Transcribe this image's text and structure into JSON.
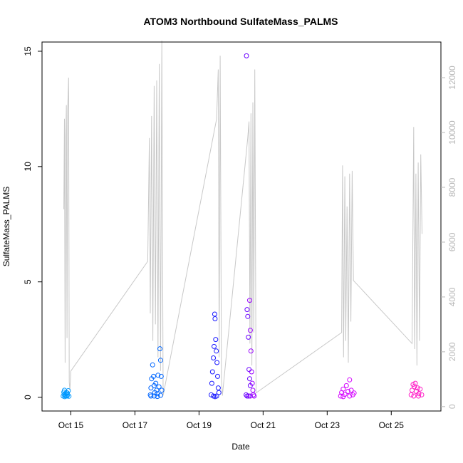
{
  "chart_data": {
    "type": "scatter",
    "title": "ATOM3 Northbound SulfateMass_PALMS",
    "xlabel": "Date",
    "ylabel": "SulfateMass_PALMS",
    "x_unit": "day of October",
    "xlim": [
      14.1,
      26.55
    ],
    "ylim": [
      -0.6,
      15.4
    ],
    "x_ticks": [
      {
        "value": 15,
        "label": "Oct 15"
      },
      {
        "value": 17,
        "label": "Oct 17"
      },
      {
        "value": 19,
        "label": "Oct 19"
      },
      {
        "value": 21,
        "label": "Oct 21"
      },
      {
        "value": 23,
        "label": "Oct 23"
      },
      {
        "value": 25,
        "label": "Oct 25"
      }
    ],
    "y_ticks": [
      0,
      5,
      10,
      15
    ],
    "y2_ticks": [
      0,
      2000,
      4000,
      6000,
      8000,
      10000,
      12000
    ],
    "y2lim": [
      -160,
      13300
    ],
    "grid": false,
    "legend": "none",
    "colors": {
      "altitude_line": "#c8c8c8",
      "right_axis": "#b8b8b8",
      "flight_palette": [
        "#0099ff",
        "#0066ff",
        "#1a1aff",
        "#6a00ff",
        "#9900ff",
        "#d400ff",
        "#ff1ac6"
      ]
    },
    "altitude_series": {
      "description": "Grey aircraft altitude trace plotted against right axis",
      "points": [
        [
          14.78,
          7200
        ],
        [
          14.8,
          10500
        ],
        [
          14.82,
          1600
        ],
        [
          14.84,
          9800
        ],
        [
          14.86,
          11000
        ],
        [
          14.88,
          2500
        ],
        [
          14.9,
          10800
        ],
        [
          14.93,
          12000
        ],
        [
          14.95,
          900
        ],
        [
          14.97,
          600
        ],
        [
          15.0,
          1300
        ],
        [
          17.4,
          5300
        ],
        [
          17.45,
          9800
        ],
        [
          17.48,
          3400
        ],
        [
          17.52,
          10600
        ],
        [
          17.56,
          2400
        ],
        [
          17.6,
          11700
        ],
        [
          17.64,
          3000
        ],
        [
          17.68,
          11900
        ],
        [
          17.72,
          1800
        ],
        [
          17.76,
          12500
        ],
        [
          17.8,
          1300
        ],
        [
          17.84,
          13350
        ],
        [
          17.88,
          400
        ],
        [
          19.55,
          10500
        ],
        [
          19.6,
          12300
        ],
        [
          19.63,
          1800
        ],
        [
          19.66,
          12800
        ],
        [
          19.7,
          1100
        ],
        [
          19.73,
          400
        ],
        [
          20.52,
          9800
        ],
        [
          20.56,
          10400
        ],
        [
          20.59,
          2300
        ],
        [
          20.62,
          10700
        ],
        [
          20.65,
          1500
        ],
        [
          20.68,
          11100
        ],
        [
          20.71,
          2700
        ],
        [
          20.74,
          12300
        ],
        [
          20.78,
          500
        ],
        [
          23.45,
          2700
        ],
        [
          23.48,
          8800
        ],
        [
          23.51,
          1800
        ],
        [
          23.55,
          8400
        ],
        [
          23.58,
          2400
        ],
        [
          23.62,
          7300
        ],
        [
          23.66,
          1600
        ],
        [
          23.7,
          8500
        ],
        [
          23.74,
          3100
        ],
        [
          23.78,
          8600
        ],
        [
          23.82,
          4600
        ],
        [
          25.65,
          2300
        ],
        [
          25.7,
          10200
        ],
        [
          25.73,
          2100
        ],
        [
          25.77,
          8500
        ],
        [
          25.8,
          1500
        ],
        [
          25.84,
          8900
        ],
        [
          25.88,
          2400
        ],
        [
          25.92,
          9200
        ],
        [
          25.96,
          6300
        ]
      ]
    },
    "flights": [
      {
        "color": "#0099ff",
        "x_range": [
          14.75,
          14.95
        ],
        "points": [
          [
            14.76,
            0.05
          ],
          [
            14.79,
            0.12
          ],
          [
            14.8,
            0.3
          ],
          [
            14.82,
            0.08
          ],
          [
            14.84,
            0.15
          ],
          [
            14.86,
            0.2
          ],
          [
            14.88,
            0.05
          ],
          [
            14.9,
            0.1
          ],
          [
            14.92,
            0.28
          ],
          [
            14.94,
            0.04
          ],
          [
            14.81,
            0.02
          ],
          [
            14.85,
            0.06
          ],
          [
            14.89,
            0.18
          ],
          [
            14.78,
            0.22
          ]
        ]
      },
      {
        "color": "#0066ff",
        "x_range": [
          17.45,
          17.85
        ],
        "points": [
          [
            17.48,
            0.1
          ],
          [
            17.5,
            0.4
          ],
          [
            17.52,
            0.8
          ],
          [
            17.55,
            1.4
          ],
          [
            17.58,
            0.9
          ],
          [
            17.6,
            0.5
          ],
          [
            17.62,
            0.2
          ],
          [
            17.65,
            0.6
          ],
          [
            17.68,
            0.3
          ],
          [
            17.7,
            0.15
          ],
          [
            17.72,
            0.95
          ],
          [
            17.75,
            0.45
          ],
          [
            17.78,
            2.1
          ],
          [
            17.8,
            1.6
          ],
          [
            17.82,
            0.9
          ],
          [
            17.84,
            0.3
          ],
          [
            17.5,
            0.05
          ],
          [
            17.6,
            0.05
          ],
          [
            17.7,
            0.03
          ],
          [
            17.8,
            0.08
          ]
        ]
      },
      {
        "color": "#1a1aff",
        "x_range": [
          19.35,
          19.75
        ],
        "points": [
          [
            19.38,
            0.1
          ],
          [
            19.4,
            0.6
          ],
          [
            19.42,
            1.1
          ],
          [
            19.45,
            1.7
          ],
          [
            19.47,
            2.2
          ],
          [
            19.49,
            3.6
          ],
          [
            19.5,
            3.4
          ],
          [
            19.52,
            2.5
          ],
          [
            19.54,
            2.0
          ],
          [
            19.56,
            1.5
          ],
          [
            19.58,
            0.9
          ],
          [
            19.6,
            0.4
          ],
          [
            19.45,
            0.05
          ],
          [
            19.55,
            0.05
          ],
          [
            19.62,
            0.2
          ],
          [
            19.5,
            0.02
          ]
        ]
      },
      {
        "color": "#6a00ff",
        "x_range": [
          20.45,
          20.85
        ],
        "points": [
          [
            20.47,
            0.1
          ],
          [
            20.48,
            14.8
          ],
          [
            20.5,
            3.8
          ],
          [
            20.52,
            3.5
          ],
          [
            20.54,
            2.6
          ],
          [
            20.56,
            1.2
          ],
          [
            20.58,
            0.8
          ],
          [
            20.6,
            0.5
          ],
          [
            20.5,
            0.05
          ],
          [
            20.55,
            0.05
          ]
        ]
      },
      {
        "color": "#9900ff",
        "x_range": [
          20.55,
          20.85
        ],
        "points": [
          [
            20.58,
            4.2
          ],
          [
            20.6,
            2.9
          ],
          [
            20.62,
            2.0
          ],
          [
            20.64,
            1.1
          ],
          [
            20.66,
            0.6
          ],
          [
            20.68,
            0.3
          ],
          [
            20.7,
            0.1
          ],
          [
            20.72,
            0.05
          ],
          [
            20.6,
            0.05
          ]
        ]
      },
      {
        "color": "#d400ff",
        "x_range": [
          23.4,
          23.85
        ],
        "points": [
          [
            23.42,
            0.05
          ],
          [
            23.45,
            0.2
          ],
          [
            23.5,
            0.35
          ],
          [
            23.55,
            0.12
          ],
          [
            23.6,
            0.5
          ],
          [
            23.65,
            0.25
          ],
          [
            23.7,
            0.75
          ],
          [
            23.75,
            0.3
          ],
          [
            23.8,
            0.1
          ],
          [
            23.84,
            0.18
          ],
          [
            23.5,
            0.02
          ],
          [
            23.7,
            0.05
          ]
        ]
      },
      {
        "color": "#ff1ac6",
        "x_range": [
          25.6,
          26.0
        ],
        "points": [
          [
            25.62,
            0.1
          ],
          [
            25.65,
            0.3
          ],
          [
            25.68,
            0.55
          ],
          [
            25.72,
            0.45
          ],
          [
            25.75,
            0.6
          ],
          [
            25.78,
            0.25
          ],
          [
            25.82,
            0.4
          ],
          [
            25.86,
            0.15
          ],
          [
            25.9,
            0.35
          ],
          [
            25.95,
            0.1
          ],
          [
            25.7,
            0.05
          ],
          [
            25.85,
            0.05
          ]
        ]
      }
    ]
  }
}
